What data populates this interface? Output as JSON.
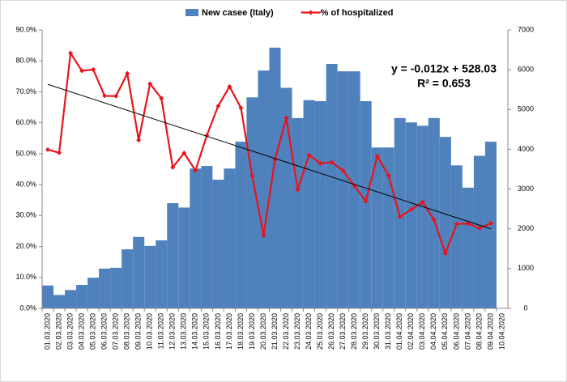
{
  "chart_data": {
    "type": "bar_line",
    "categories": [
      "01.03.2020",
      "02.03.2020",
      "03.03.2020",
      "04.03.2020",
      "05.03.2020",
      "06.03.2020",
      "07.03.2020",
      "08.03.2020",
      "09.03.2020",
      "10.03.2020",
      "11.03.2020",
      "12.03.2020",
      "13.03.2020",
      "14.03.2020",
      "15.03.2020",
      "16.03.2020",
      "17.03.2020",
      "18.03.2020",
      "19.03.2020",
      "20.03.2020",
      "21.03.2020",
      "22.03.2020",
      "23.03.2020",
      "24.03.2020",
      "25.03.2020",
      "26.03.2020",
      "27.03.2020",
      "28.03.2020",
      "29.03.2020",
      "30.03.2020",
      "31.03.2020",
      "01.04.2020",
      "02.04.2020",
      "03.04.2020",
      "04.04.2020",
      "05.04.2020",
      "06.04.2020",
      "07.04.2020",
      "08.04.2020",
      "09.04.2020",
      "10.04.2020"
    ],
    "series": [
      {
        "name": "New casee (Italy)",
        "color": "#4f81bd",
        "axis": "y2",
        "kind": "bar",
        "values": [
          575,
          335,
          460,
          590,
          770,
          1000,
          1020,
          1485,
          1795,
          1570,
          1710,
          2645,
          2535,
          3515,
          3580,
          3235,
          3515,
          4190,
          5305,
          5980,
          6555,
          5545,
          4785,
          5235,
          5210,
          6145,
          5960,
          5960,
          5210,
          4045,
          4045,
          4785,
          4675,
          4590,
          4785,
          4310,
          3595,
          3035,
          3835,
          4190,
          null
        ]
      },
      {
        "name": "% of hospitalized",
        "color": "#e8141c",
        "kind": "line",
        "values": [
          51.3,
          50.3,
          82.5,
          76.8,
          77.2,
          68.7,
          68.6,
          75.9,
          54.4,
          72.6,
          67.9,
          45.6,
          50.2,
          44.6,
          55.9,
          65.4,
          71.7,
          64.8,
          42.7,
          23.6,
          48.1,
          61.5,
          38.4,
          49.5,
          46.9,
          47.2,
          44.5,
          39.6,
          34.6,
          49.2,
          42.9,
          29.6,
          32.0,
          34.3,
          28.6,
          17.8,
          27.3,
          27.4,
          25.9,
          27.5,
          null
        ]
      }
    ],
    "trendline": {
      "start": 72.4,
      "end": 25.7
    },
    "annotations": [
      "y = -0.012x + 528.03",
      "R² = 0.653"
    ],
    "ylim": [
      0,
      90
    ],
    "yticks": [
      {
        "value": 0,
        "label": "0.0%"
      },
      {
        "value": 10,
        "label": "10.0%"
      },
      {
        "value": 20,
        "label": "20.0%"
      },
      {
        "value": 30,
        "label": "30.0%"
      },
      {
        "value": 40,
        "label": "40.0%"
      },
      {
        "value": 50,
        "label": "50.0%"
      },
      {
        "value": 60,
        "label": "60.0%"
      },
      {
        "value": 70,
        "label": "70.0%"
      },
      {
        "value": 80,
        "label": "80.0%"
      },
      {
        "value": 90,
        "label": "90.0%"
      }
    ],
    "y2lim": [
      0,
      7000
    ],
    "y2ticks": [
      0,
      1000,
      2000,
      3000,
      4000,
      5000,
      6000,
      7000
    ],
    "legend": "top"
  }
}
